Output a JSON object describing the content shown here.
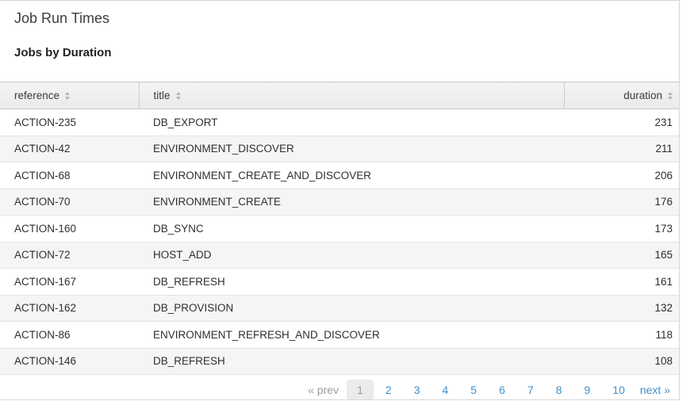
{
  "page": {
    "title": "Job Run Times"
  },
  "section": {
    "title": "Jobs by Duration"
  },
  "table": {
    "columns": [
      {
        "key": "reference",
        "label": "reference",
        "sortable": true
      },
      {
        "key": "title",
        "label": "title",
        "sortable": true
      },
      {
        "key": "duration",
        "label": "duration",
        "sortable": true
      }
    ],
    "rows": [
      {
        "reference": "ACTION-235",
        "title": "DB_EXPORT",
        "duration": "231"
      },
      {
        "reference": "ACTION-42",
        "title": "ENVIRONMENT_DISCOVER",
        "duration": "211"
      },
      {
        "reference": "ACTION-68",
        "title": "ENVIRONMENT_CREATE_AND_DISCOVER",
        "duration": "206"
      },
      {
        "reference": "ACTION-70",
        "title": "ENVIRONMENT_CREATE",
        "duration": "176"
      },
      {
        "reference": "ACTION-160",
        "title": "DB_SYNC",
        "duration": "173"
      },
      {
        "reference": "ACTION-72",
        "title": "HOST_ADD",
        "duration": "165"
      },
      {
        "reference": "ACTION-167",
        "title": "DB_REFRESH",
        "duration": "161"
      },
      {
        "reference": "ACTION-162",
        "title": "DB_PROVISION",
        "duration": "132"
      },
      {
        "reference": "ACTION-86",
        "title": "ENVIRONMENT_REFRESH_AND_DISCOVER",
        "duration": "118"
      },
      {
        "reference": "ACTION-146",
        "title": "DB_REFRESH",
        "duration": "108"
      }
    ]
  },
  "pagination": {
    "prev_label": "« prev",
    "next_label": "next »",
    "pages": [
      "1",
      "2",
      "3",
      "4",
      "5",
      "6",
      "7",
      "8",
      "9",
      "10"
    ],
    "current_page": "1"
  },
  "colors": {
    "link_blue": "#4290ca",
    "muted_gray": "#999999",
    "header_bg": "#efefef",
    "row_alt_bg": "#f5f5f5",
    "border_gray": "#d6d6d6",
    "text": "#2f2f2f"
  }
}
